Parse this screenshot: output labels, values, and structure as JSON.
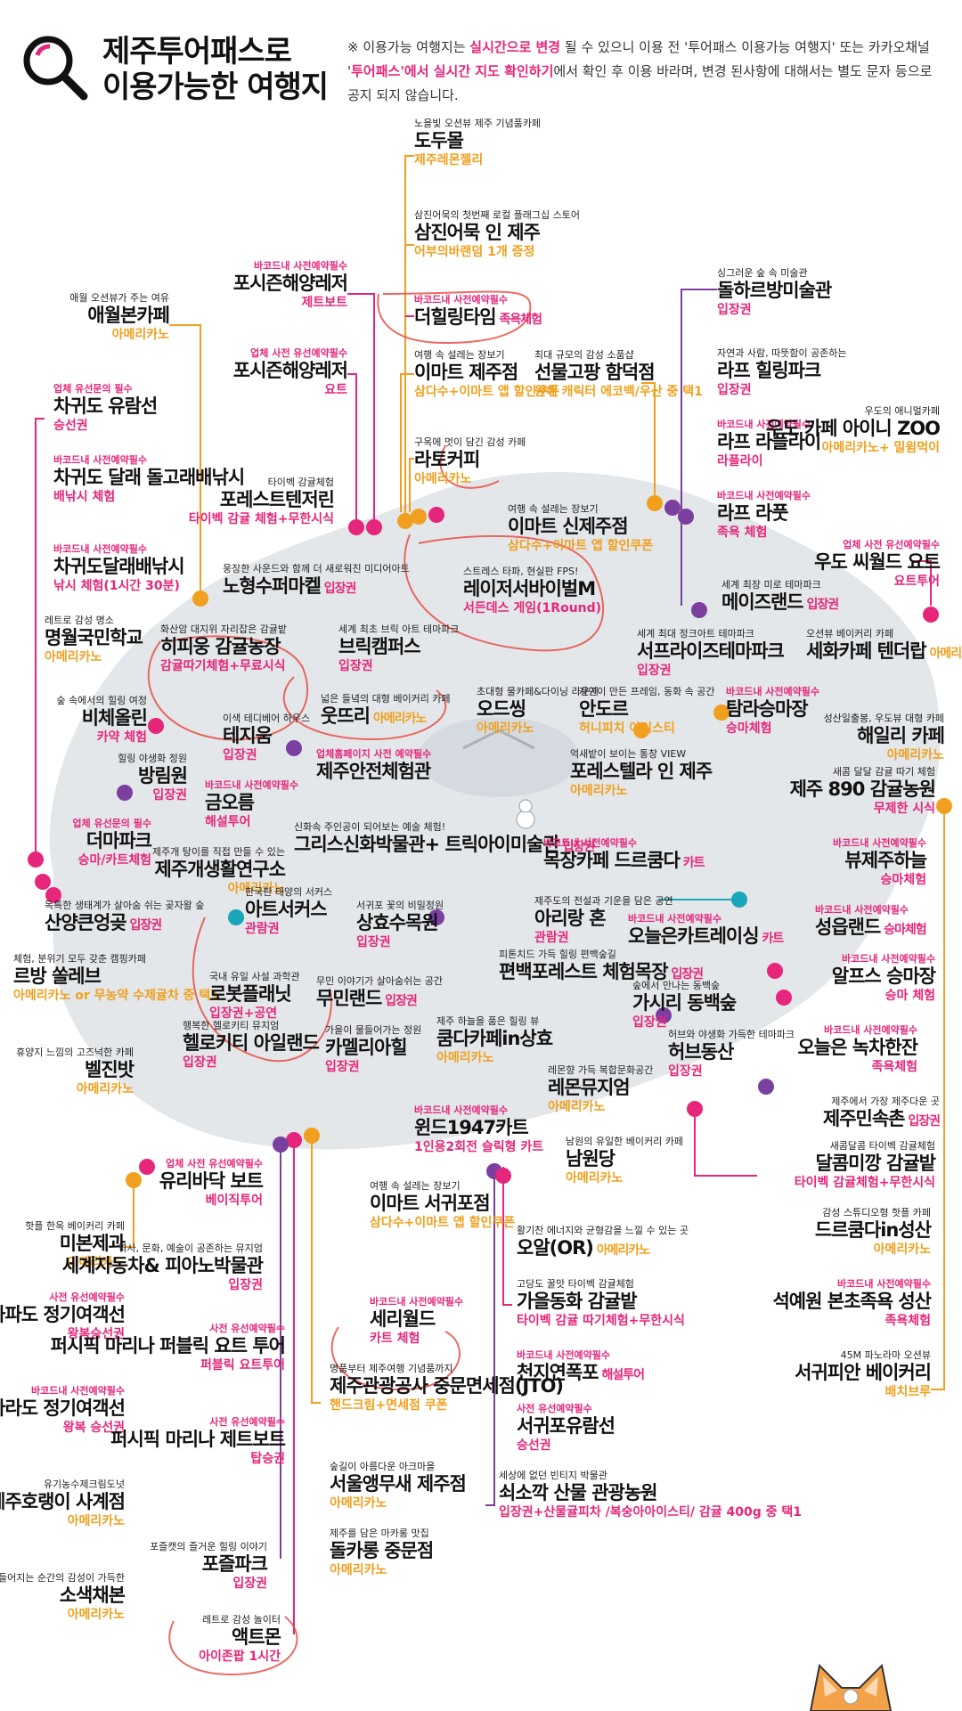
{
  "header": {
    "title_line1": "제주투어패스로",
    "title_line2": "이용가능한 여행지",
    "notice_p1": "※ 이용가능 여행지는 ",
    "notice_h1": "실시간으로 변경",
    "notice_p2": " 될 수 있으니 이용 전 '투어패스 이용가능 여행지' 또는 카카오채널 '",
    "notice_h2": "투어패스'에서 실시간 지도 확인하기",
    "notice_p3": "에서 확인 후 이용 바라며, 변경 된사항에 대해서는 별도 문자 등으로 공지 되지 않습니다."
  },
  "colors": {
    "pink": "#e6267a",
    "orange": "#f0a01e",
    "purple": "#7b3fa0",
    "teal": "#19a6b8",
    "island": "#e3e7ea",
    "annotation": "#e8453c"
  },
  "icons": [
    "magnifier-icon",
    "map-pin-icon",
    "moon-icon",
    "paw-icon",
    "snowman-icon",
    "fox-mascot-icon"
  ],
  "places": [
    {
      "id": "dodumol",
      "desc": "노을빛 오션뷰 제주 기념품카페",
      "name": "도두몰",
      "benefit": "제주레몬젤리",
      "color": "orange"
    },
    {
      "id": "samjin",
      "desc": "삼진어묵의 첫번째 로컬 플래그십 스토어",
      "name": "삼진어묵 인 제주",
      "benefit": "어부의바랜덤 1개 증정",
      "color": "orange"
    },
    {
      "id": "healing",
      "badge": "바코드내 사전예약필수",
      "name": "더힐링타임",
      "inline": "족욕체험",
      "color": "pink"
    },
    {
      "id": "emart_jeju",
      "desc": "여행 속 설레는 장보기",
      "name": "이마트 제주점",
      "benefit": "삼다수+이마트 앱 할인쿠폰",
      "color": "orange"
    },
    {
      "id": "sungmul",
      "desc": "최대 규모의 감성 소품샵",
      "name": "선물고팡 함덕점",
      "benefit": "원해 캐릭터 에코백/우산 중 택1",
      "color": "orange"
    },
    {
      "id": "latocafe",
      "desc": "구옥에 멋이 담긴 감성 카페",
      "name": "라토커피",
      "benefit": "아메리카노",
      "color": "orange"
    },
    {
      "id": "emart_sinjeju",
      "desc": "여행 속 설레는 장보기",
      "name": "이마트 신제주점",
      "benefit": "삼다수+이마트 앱 할인쿠폰",
      "color": "orange"
    },
    {
      "id": "laser",
      "desc": "스트레스 타파, 현실판 FPS!",
      "name": "레이저서바이벌M",
      "benefit": "서든데스 게임(1Round)",
      "color": "pink"
    },
    {
      "id": "poseidon1",
      "badge": "바코드내 사전예약필수",
      "name": "포시즌해양레저",
      "benefit": "제트보트",
      "color": "pink"
    },
    {
      "id": "poseidon2",
      "badge": "업체 사전 유선예약필수",
      "name": "포시즌해양레저",
      "benefit": "요트",
      "color": "pink"
    },
    {
      "id": "aewol",
      "desc": "애월 오션뷰가 주는 여유",
      "name": "애월본카페",
      "benefit": "아메리카노",
      "color": "orange"
    },
    {
      "id": "chagwi1",
      "badge": "업체 유선문의 필수",
      "name": "차귀도 유람선",
      "benefit": "승선권",
      "color": "pink"
    },
    {
      "id": "chagwi2",
      "badge": "바코드내 사전예약필수",
      "name": "차귀도 달래 돌고래배낚시",
      "benefit": "배낚시 체험",
      "color": "pink"
    },
    {
      "id": "chagwi3",
      "badge": "바코드내 사전예약필수",
      "name": "차귀도달래배낚시",
      "benefit": "낚시 체험(1시간 30분)",
      "color": "pink"
    },
    {
      "id": "forest_tangerine",
      "desc": "타이벡 감귤체험",
      "name": "포레스트텐저린",
      "benefit": "타이벡 감귤 체험+무한시식",
      "color": "pink"
    },
    {
      "id": "nohyungsu",
      "desc": "웅장한 사운드와 함께 더 새로워진 미디어아트",
      "name": "노형수퍼마켙",
      "inline": "입장권",
      "color": "purple"
    },
    {
      "id": "myeongwol",
      "desc": "레트로 감성 명소",
      "name": "명월국민학교",
      "benefit": "아메리카노",
      "color": "orange"
    },
    {
      "id": "hipiung",
      "desc": "화산암 대지위 자리잡은 감귤밭",
      "name": "히피웅 감귤농장",
      "benefit": "감귤따기체험+무료시식",
      "color": "pink"
    },
    {
      "id": "brick",
      "desc": "세계 최초 브릭 아트 테마파크",
      "name": "브릭캠퍼스",
      "benefit": "입장권",
      "color": "purple"
    },
    {
      "id": "ootree",
      "desc": "넓은 들녘의 대형 베이커리 카페",
      "name": "웃뜨리",
      "inline": "아메리카노",
      "color": "orange"
    },
    {
      "id": "bichae",
      "desc": "숲 속에서의 힐링 여정",
      "name": "비체올린",
      "benefit": "카약 체험",
      "color": "pink"
    },
    {
      "id": "teddy",
      "desc": "이색 테디베어 하우스",
      "name": "테지움",
      "benefit": "입장권",
      "color": "purple"
    },
    {
      "id": "safety",
      "badge": "업체홈페이지 사전 예약필수",
      "name": "제주안전체험관",
      "color": "pink"
    },
    {
      "id": "bangrim",
      "desc": "힐링 야생화 정원",
      "name": "방림원",
      "benefit": "입장권",
      "color": "purple"
    },
    {
      "id": "geumoreum",
      "badge": "바코드내 사전예약필수",
      "name": "금오름",
      "benefit": "해설투어",
      "color": "pink"
    },
    {
      "id": "greek",
      "desc": "신화속 주인공이 되어보는 예술 체험!",
      "name": "그리스신화박물관+ 트릭아이미술관",
      "inline": "입장권",
      "color": "purple"
    },
    {
      "id": "themapark",
      "badge": "업체 유선문의 필수",
      "name": "더마파크",
      "benefit": "승마/카트체험",
      "color": "pink"
    },
    {
      "id": "gaesaeng",
      "desc": "제주개 탕이를 직접 만들 수 있는",
      "name": "제주개생활연구소",
      "benefit": "아메리카노",
      "color": "orange"
    },
    {
      "id": "artcircus",
      "desc": "한국판 태양의 서커스",
      "name": "아트서커스",
      "benefit": "관람권",
      "color": "teal"
    },
    {
      "id": "sanyang",
      "desc": "독특한 생태계가 살아숨 쉬는 곶자왈 숲",
      "name": "산양큰엉곶",
      "inline": "입장권",
      "color": "purple"
    },
    {
      "id": "sanghyo",
      "desc": "서귀포 꽃의 비밀정원",
      "name": "상효수목원",
      "benefit": "입장권",
      "color": "purple"
    },
    {
      "id": "rbang",
      "desc": "체험, 분위기 모두 갖춘 캠핑카페",
      "name": "르방 쏠레브",
      "benefit": "아메리카노 or 무농약 수제귤차 중 택1",
      "color": "orange"
    },
    {
      "id": "robot",
      "desc": "국내 유일 사설 과학관",
      "name": "로봇플래닛",
      "benefit": "입장권+공연",
      "color": "purple"
    },
    {
      "id": "mumin",
      "desc": "무민 이야기가 살아숨쉬는 공간",
      "name": "무민랜드",
      "inline": "입장권",
      "color": "purple"
    },
    {
      "id": "heli",
      "desc": "행복한 헬로키티 뮤지엄",
      "name": "헬로키티 아일랜드",
      "benefit": "입장권",
      "color": "purple"
    },
    {
      "id": "camellia",
      "desc": "가을이 물들어가는 정원",
      "name": "카멜리아힐",
      "benefit": "입장권",
      "color": "purple"
    },
    {
      "id": "belgin",
      "desc": "휴양지 느낌의 고즈넉한 카페",
      "name": "벨진밧",
      "benefit": "아메리카노",
      "color": "orange"
    },
    {
      "id": "glass",
      "badge": "업체 사전 유선예약필수",
      "name": "유리바닥 보트",
      "benefit": "베이직투어",
      "color": "pink"
    },
    {
      "id": "wind",
      "badge": "바코드내 사전예약필수",
      "name": "윈드1947카트",
      "benefit": "1인용2회전 슬릭형 카트",
      "color": "pink"
    },
    {
      "id": "mibon",
      "desc": "핫플 한옥 베이커리 카페",
      "name": "미본제과",
      "benefit": "아메리카노",
      "color": "orange"
    },
    {
      "id": "gapa",
      "badge": "사전 유선예약필수",
      "name": "가파도 정기여객선",
      "benefit": "왕복승선권",
      "color": "pink"
    },
    {
      "id": "marado",
      "badge": "바코드내 사전예약필수",
      "name": "마라도 정기여객선",
      "benefit": "왕복 승선권",
      "color": "pink"
    },
    {
      "id": "horang",
      "desc": "유기농수제크림도넛",
      "name": "제주호랭이 사계점",
      "benefit": "아메리카노",
      "color": "orange"
    },
    {
      "id": "sokseak",
      "desc": "색이 물들어지는 순간의 감성이 가득한",
      "name": "소색채본",
      "benefit": "아메리카노",
      "color": "orange"
    },
    {
      "id": "worldcar",
      "desc": "역사, 문화, 예술이 공존하는 뮤지엄",
      "name": "세계자동차& 피아노박물관",
      "benefit": "입장권",
      "color": "purple"
    },
    {
      "id": "pacific1",
      "badge": "사전 유선예약필수",
      "name": "퍼시픽 마리나 퍼블릭 요트 투어",
      "benefit": "퍼블릭 요트투어",
      "color": "pink"
    },
    {
      "id": "pacific2",
      "badge": "사전 유선예약필수",
      "name": "퍼시픽 마리나 제트보트",
      "benefit": "탑승권",
      "color": "pink"
    },
    {
      "id": "pojeul",
      "desc": "포즐캣의 즐거운 힐링 이야기",
      "name": "포즐파크",
      "benefit": "입장권",
      "color": "purple"
    },
    {
      "id": "actmon",
      "desc": "레트로 감성 놀이터",
      "name": "액트몬",
      "benefit": "아이존팝 1시간",
      "color": "pink"
    },
    {
      "id": "emart_seogwi",
      "desc": "여행 속 설레는 장보기",
      "name": "이마트 서귀포점",
      "benefit": "삼다수+이마트 앱 할인쿠폰",
      "color": "orange"
    },
    {
      "id": "serialworld",
      "badge": "바코드내 사전예약필수",
      "name": "세리월드",
      "benefit": "카트 체험",
      "color": "pink"
    },
    {
      "id": "jto",
      "desc": "명품부터 제주여행 기념품까지",
      "name": "제주관광공사 중문면세점(JTO)",
      "benefit": "핸드크림+면세점 쿠폰",
      "color": "orange"
    },
    {
      "id": "seoulang",
      "desc": "숲길이 아름다운 아크마을",
      "name": "서울앵무새 제주점",
      "benefit": "아메리카노",
      "color": "orange"
    },
    {
      "id": "dolkarong",
      "desc": "제주를 담은 마카롱 맛집",
      "name": "돌카롱 중문점",
      "benefit": "아메리카노",
      "color": "orange"
    },
    {
      "id": "dolharbang",
      "desc": "싱그러운 숲 속 미술관",
      "name": "돌하르방미술관",
      "benefit": "입장권",
      "color": "purple"
    },
    {
      "id": "laf_healing",
      "desc": "자연과 사람, 따뜻함이 공존하는",
      "name": "라프 힐링파크",
      "benefit": "입장권",
      "color": "purple"
    },
    {
      "id": "laf_lafly",
      "badge": "바코드내 사전예약필수",
      "name": "라프 라플라이",
      "benefit": "라플라이",
      "color": "pink"
    },
    {
      "id": "laf_lafoot",
      "badge": "바코드내 사전예약필수",
      "name": "라프 라풋",
      "benefit": "족욕 체험",
      "color": "pink"
    },
    {
      "id": "udo_cafe",
      "desc": "우도의 애니멀카페",
      "name": "우도 카페 아이니 ZOO",
      "benefit": "아메리카노+ 밀윔먹이",
      "color": "orange"
    },
    {
      "id": "udo_yacht",
      "badge": "업체 사전 유선예약필수",
      "name": "우도 씨월드 요트",
      "benefit": "요트투어",
      "color": "pink"
    },
    {
      "id": "maze",
      "desc": "세계 최장 미로 테마파크",
      "name": "메이즈랜드",
      "inline": "입장권",
      "color": "purple"
    },
    {
      "id": "surprise",
      "desc": "세계 최대 정크아트 테마파크",
      "name": "서프라이즈테마파크",
      "benefit": "입장권",
      "color": "purple"
    },
    {
      "id": "sehwa",
      "desc": "오션뷰 베이커리 카페",
      "name": "세화카페 텐더랍",
      "inline": "아메리카노",
      "color": "orange"
    },
    {
      "id": "odsing",
      "desc": "초대형 물카페&다이닝 라운지",
      "name": "오드씽",
      "benefit": "아메리카노",
      "color": "orange"
    },
    {
      "id": "andor",
      "desc": "자연이 만든 프레임, 동화 속 공간",
      "name": "안도르",
      "benefit": "허니피치 아이스티",
      "color": "orange"
    },
    {
      "id": "tamra",
      "badge": "바코드내 사전예약필수",
      "name": "탐라승마장",
      "benefit": "승마체험",
      "color": "pink"
    },
    {
      "id": "haeili",
      "desc": "성산일출봉, 우도뷰 대형 카페",
      "name": "해일리 카페",
      "benefit": "아메리카노",
      "color": "orange"
    },
    {
      "id": "forestella",
      "desc": "억새밭이 보이는 통창 VIEW",
      "name": "포레스텔라 인 제주",
      "benefit": "아메리카노",
      "color": "orange"
    },
    {
      "id": "jeju890",
      "desc": "새콤 달달 감귤 따기 체험",
      "name": "제주 890 감귤농원",
      "benefit": "무제한 시식",
      "color": "pink"
    },
    {
      "id": "drkuda",
      "badge": "바코드내 사전예약필수",
      "name": "목장카페 드르쿰다",
      "inline": "카트",
      "color": "pink"
    },
    {
      "id": "viewjeju",
      "badge": "바코드내 사전예약필수",
      "name": "뷰제주하늘",
      "benefit": "승마체험",
      "color": "pink"
    },
    {
      "id": "arirang",
      "desc": "제주도의 전설과 기운을 담은 공연",
      "name": "아리랑 혼",
      "benefit": "관람권",
      "color": "teal"
    },
    {
      "id": "oneun_kart",
      "badge": "바코드내 사전예약필수",
      "name": "오늘은카트레이싱",
      "inline": "카트",
      "color": "pink"
    },
    {
      "id": "sungeup",
      "badge": "바코드내 사전예약필수",
      "name": "성읍랜드",
      "inline": "승마체험",
      "color": "pink"
    },
    {
      "id": "alps",
      "badge": "바코드내 사전예약필수",
      "name": "알프스 승마장",
      "benefit": "승마 체험",
      "color": "pink"
    },
    {
      "id": "pyunbaek",
      "desc": "피톤치드 가득 힐링 편백숲길",
      "name": "편백포레스트 체험목장",
      "inline": "입장권",
      "color": "purple"
    },
    {
      "id": "gasiri",
      "desc": "숲에서 만나는 동백숲",
      "name": "가시리 동백숲",
      "benefit": "입장권",
      "color": "purple"
    },
    {
      "id": "oneun_green",
      "badge": "바코드내 사전예약필수",
      "name": "오늘은 녹차한잔",
      "benefit": "족욕체험",
      "color": "pink"
    },
    {
      "id": "kumda",
      "desc": "제주 하늘을 품은 힐링 뷰",
      "name": "쿰다카페in상효",
      "benefit": "아메리카노",
      "color": "orange"
    },
    {
      "id": "herb",
      "desc": "허브와 야생화 가득한 테마파크",
      "name": "허브동산",
      "benefit": "입장권",
      "color": "purple"
    },
    {
      "id": "lemon",
      "desc": "레몬향 가득 복합문화공간",
      "name": "레몬뮤지엄",
      "benefit": "아메리카노",
      "color": "orange"
    },
    {
      "id": "minsok",
      "desc": "제주에서 가장 제주다운 곳",
      "name": "제주민속촌",
      "inline": "입장권",
      "color": "purple"
    },
    {
      "id": "namwon",
      "desc": "남원의 유일한 베이커리 카페",
      "name": "남원당",
      "benefit": "아메리카노",
      "color": "orange"
    },
    {
      "id": "dalkom",
      "desc": "새콤달콤 타이벡 감귤체험",
      "name": "달콤미깡 감귤밭",
      "benefit": "타이벡 감귤체험+무한시식",
      "color": "pink"
    },
    {
      "id": "oall",
      "desc": "활기찬 에너지와 균형감을 느낄 수 있는 곳",
      "name": "오알(OR)",
      "inline": "아메리카노",
      "color": "orange"
    },
    {
      "id": "drkum_seongsan",
      "desc": "감성 스튜디오형 핫플 카페",
      "name": "드르쿰다in성산",
      "benefit": "아메리카노",
      "color": "orange"
    },
    {
      "id": "gaeul",
      "desc": "고당도 꿀맛 타이벡 감귤체험",
      "name": "가을동화 감귤밭",
      "benefit": "타이벡 감귤 따기체험+무한시식",
      "color": "pink"
    },
    {
      "id": "seokyewon",
      "badge": "바코드내 사전예약필수",
      "name": "석예원 본초족욕 성산",
      "benefit": "족욕체험",
      "color": "pink"
    },
    {
      "id": "cheonji",
      "badge": "바코드내 사전예약필수",
      "name": "천지연폭포",
      "inline": "해설투어",
      "color": "pink"
    },
    {
      "id": "seogwi_cruise",
      "badge": "사전 유선예약필수",
      "name": "서귀포유람선",
      "benefit": "승선권",
      "color": "pink"
    },
    {
      "id": "seogwi_bakery",
      "desc": "45M 파노라마 오션뷰",
      "name": "서귀피안 베이커리",
      "benefit": "배치브루",
      "color": "orange"
    },
    {
      "id": "soesokkak",
      "desc": "세상에 없던 빈티지 박물관",
      "name": "쇠소깍 산물 관광농원",
      "benefit": "입장권+산물귤피차 /복숭아아이스티/ 감귤 400g 중 택1",
      "color": "purple"
    }
  ]
}
